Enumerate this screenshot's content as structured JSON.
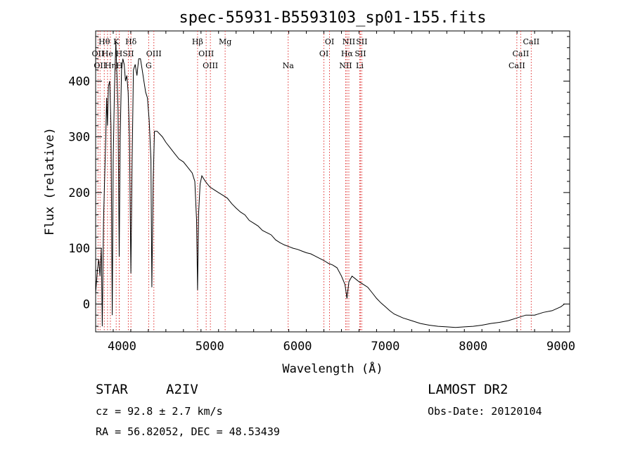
{
  "chart_data": {
    "type": "line",
    "title": "spec-55931-B5593103_sp01-155.fits",
    "xlabel": "Wavelength (Å)",
    "ylabel": "Flux (relative)",
    "xlim": [
      3700,
      9100
    ],
    "ylim": [
      -50,
      490
    ],
    "xticks": [
      4000,
      5000,
      6000,
      7000,
      8000,
      9000
    ],
    "yticks": [
      0,
      100,
      200,
      300,
      400
    ],
    "grid": false,
    "series": [
      {
        "points": [
          [
            3700,
            20
          ],
          [
            3720,
            60
          ],
          [
            3735,
            80
          ],
          [
            3750,
            50
          ],
          [
            3765,
            100
          ],
          [
            3775,
            -40
          ],
          [
            3790,
            150
          ],
          [
            3805,
            240
          ],
          [
            3815,
            300
          ],
          [
            3825,
            370
          ],
          [
            3835,
            320
          ],
          [
            3845,
            390
          ],
          [
            3860,
            400
          ],
          [
            3875,
            320
          ],
          [
            3889,
            -20
          ],
          [
            3900,
            260
          ],
          [
            3915,
            390
          ],
          [
            3930,
            470
          ],
          [
            3945,
            400
          ],
          [
            3955,
            350
          ],
          [
            3968,
            85
          ],
          [
            3980,
            300
          ],
          [
            3995,
            420
          ],
          [
            4010,
            440
          ],
          [
            4025,
            430
          ],
          [
            4040,
            400
          ],
          [
            4055,
            410
          ],
          [
            4070,
            380
          ],
          [
            4085,
            300
          ],
          [
            4101,
            55
          ],
          [
            4115,
            250
          ],
          [
            4130,
            420
          ],
          [
            4150,
            430
          ],
          [
            4170,
            410
          ],
          [
            4190,
            440
          ],
          [
            4210,
            440
          ],
          [
            4230,
            420
          ],
          [
            4250,
            400
          ],
          [
            4270,
            380
          ],
          [
            4290,
            370
          ],
          [
            4310,
            330
          ],
          [
            4330,
            260
          ],
          [
            4340,
            30
          ],
          [
            4355,
            220
          ],
          [
            4370,
            310
          ],
          [
            4400,
            310
          ],
          [
            4430,
            305
          ],
          [
            4460,
            300
          ],
          [
            4500,
            290
          ],
          [
            4550,
            280
          ],
          [
            4600,
            270
          ],
          [
            4650,
            260
          ],
          [
            4700,
            255
          ],
          [
            4750,
            245
          ],
          [
            4800,
            235
          ],
          [
            4830,
            220
          ],
          [
            4850,
            150
          ],
          [
            4861,
            25
          ],
          [
            4872,
            160
          ],
          [
            4890,
            215
          ],
          [
            4910,
            230
          ],
          [
            4950,
            220
          ],
          [
            5000,
            210
          ],
          [
            5050,
            205
          ],
          [
            5100,
            200
          ],
          [
            5150,
            195
          ],
          [
            5200,
            190
          ],
          [
            5250,
            180
          ],
          [
            5300,
            172
          ],
          [
            5350,
            165
          ],
          [
            5400,
            160
          ],
          [
            5450,
            150
          ],
          [
            5500,
            145
          ],
          [
            5550,
            140
          ],
          [
            5600,
            132
          ],
          [
            5650,
            128
          ],
          [
            5700,
            124
          ],
          [
            5750,
            115
          ],
          [
            5800,
            110
          ],
          [
            5850,
            106
          ],
          [
            5900,
            103
          ],
          [
            5950,
            100
          ],
          [
            6000,
            98
          ],
          [
            6050,
            95
          ],
          [
            6100,
            92
          ],
          [
            6150,
            90
          ],
          [
            6200,
            86
          ],
          [
            6250,
            82
          ],
          [
            6300,
            78
          ],
          [
            6350,
            73
          ],
          [
            6400,
            70
          ],
          [
            6450,
            65
          ],
          [
            6500,
            50
          ],
          [
            6540,
            35
          ],
          [
            6563,
            10
          ],
          [
            6585,
            40
          ],
          [
            6620,
            50
          ],
          [
            6660,
            45
          ],
          [
            6700,
            40
          ],
          [
            6750,
            35
          ],
          [
            6800,
            30
          ],
          [
            6850,
            20
          ],
          [
            6900,
            10
          ],
          [
            6950,
            2
          ],
          [
            7000,
            -5
          ],
          [
            7050,
            -12
          ],
          [
            7100,
            -18
          ],
          [
            7200,
            -25
          ],
          [
            7300,
            -30
          ],
          [
            7400,
            -35
          ],
          [
            7500,
            -38
          ],
          [
            7600,
            -40
          ],
          [
            7700,
            -41
          ],
          [
            7800,
            -42
          ],
          [
            7900,
            -41
          ],
          [
            8000,
            -40
          ],
          [
            8100,
            -38
          ],
          [
            8200,
            -35
          ],
          [
            8300,
            -33
          ],
          [
            8400,
            -30
          ],
          [
            8500,
            -25
          ],
          [
            8600,
            -20
          ],
          [
            8700,
            -20
          ],
          [
            8800,
            -15
          ],
          [
            8900,
            -12
          ],
          [
            9000,
            -5
          ],
          [
            9040,
            0
          ]
        ]
      }
    ],
    "line_markers": [
      {
        "wavelength": 3727,
        "row": 1,
        "label": "OII"
      },
      {
        "wavelength": 3750,
        "row": 2,
        "label": "OII"
      },
      {
        "wavelength": 3798,
        "row": 0,
        "label": "Hθ"
      },
      {
        "wavelength": 3835,
        "row": 1,
        "label": "He"
      },
      {
        "wavelength": 3868,
        "row": 2,
        "label": "Hη"
      },
      {
        "wavelength": 3934,
        "row": 0,
        "label": "K"
      },
      {
        "wavelength": 3968,
        "row": 1,
        "label": "H"
      },
      {
        "wavelength": 3970,
        "row": 2,
        "label": "H"
      },
      {
        "wavelength": 4072,
        "row": 1,
        "label": "SII"
      },
      {
        "wavelength": 4102,
        "row": 0,
        "label": "Hδ"
      },
      {
        "wavelength": 4304,
        "row": 2,
        "label": "G"
      },
      {
        "wavelength": 4363,
        "row": 1,
        "label": "OIII"
      },
      {
        "wavelength": 4861,
        "row": 0,
        "label": "Hβ"
      },
      {
        "wavelength": 4959,
        "row": 1,
        "label": "OIII"
      },
      {
        "wavelength": 5007,
        "row": 2,
        "label": "OIII"
      },
      {
        "wavelength": 5175,
        "row": 0,
        "label": "Mg"
      },
      {
        "wavelength": 5893,
        "row": 2,
        "label": "Na"
      },
      {
        "wavelength": 6300,
        "row": 1,
        "label": "OI"
      },
      {
        "wavelength": 6364,
        "row": 0,
        "label": "OI"
      },
      {
        "wavelength": 6548,
        "row": 2,
        "label": "NII"
      },
      {
        "wavelength": 6563,
        "row": 1,
        "label": "Hα"
      },
      {
        "wavelength": 6584,
        "row": 0,
        "label": "NII"
      },
      {
        "wavelength": 6708,
        "row": 2,
        "label": "Li"
      },
      {
        "wavelength": 6716,
        "row": 1,
        "label": "SII"
      },
      {
        "wavelength": 6731,
        "row": 0,
        "label": "SII"
      },
      {
        "wavelength": 8498,
        "row": 2,
        "label": "CaII"
      },
      {
        "wavelength": 8542,
        "row": 1,
        "label": "CaII"
      },
      {
        "wavelength": 8662,
        "row": 0,
        "label": "CaII"
      }
    ]
  },
  "info": {
    "object_class": "STAR",
    "subclass": "A2IV",
    "survey": "LAMOST DR2",
    "cz": "cz = 92.8 ± 2.7 km/s",
    "obs_date": "Obs-Date: 20120104",
    "coords": "RA =  56.82052, DEC =  48.53439"
  }
}
